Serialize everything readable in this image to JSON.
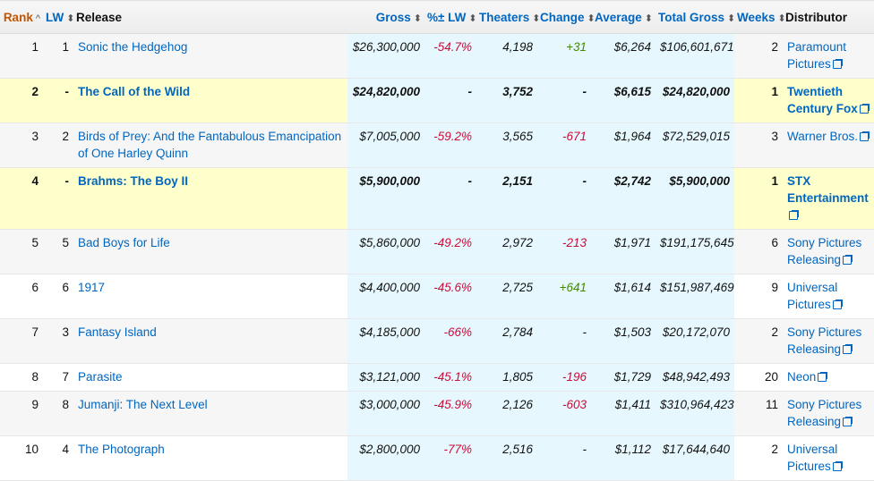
{
  "colors": {
    "link": "#0066c0",
    "sorted_header": "#c45500",
    "negative": "#cc0c39",
    "positive": "#448800",
    "new_release_bg": "#ffffcc",
    "band_bg": "#e6f8fe"
  },
  "headers": [
    {
      "label": "Rank",
      "sort": "caret-up-icon"
    },
    {
      "label": "LW",
      "sort": "sort-icon"
    },
    {
      "label": "Release"
    },
    {
      "label": "Gross",
      "sort": "sort-icon"
    },
    {
      "label": "%± LW",
      "sort": "sort-icon"
    },
    {
      "label": "Theaters",
      "sort": "sort-icon"
    },
    {
      "label": "Change",
      "sort": "sort-icon"
    },
    {
      "label": "Average",
      "sort": "sort-icon"
    },
    {
      "label": "Total Gross",
      "sort": "sort-icon"
    },
    {
      "label": "Weeks",
      "sort": "sort-icon"
    },
    {
      "label": "Distributor"
    }
  ],
  "rows": [
    {
      "rank": "1",
      "lw": "1",
      "release": "Sonic the Hedgehog",
      "gross": "$26,300,000",
      "pct": "-54.7%",
      "theaters": "4,198",
      "change": "+31",
      "average": "$6,264",
      "total": "$106,601,671",
      "weeks": "2",
      "distributor": "Paramount Pictures",
      "new": false
    },
    {
      "rank": "2",
      "lw": "-",
      "release": "The Call of the Wild",
      "gross": "$24,820,000",
      "pct": "-",
      "theaters": "3,752",
      "change": "-",
      "average": "$6,615",
      "total": "$24,820,000",
      "weeks": "1",
      "distributor": "Twentieth Century Fox",
      "new": true
    },
    {
      "rank": "3",
      "lw": "2",
      "release": "Birds of Prey: And the Fantabulous Emancipation of One Harley Quinn",
      "gross": "$7,005,000",
      "pct": "-59.2%",
      "theaters": "3,565",
      "change": "-671",
      "average": "$1,964",
      "total": "$72,529,015",
      "weeks": "3",
      "distributor": "Warner Bros.",
      "new": false
    },
    {
      "rank": "4",
      "lw": "-",
      "release": "Brahms: The Boy II",
      "gross": "$5,900,000",
      "pct": "-",
      "theaters": "2,151",
      "change": "-",
      "average": "$2,742",
      "total": "$5,900,000",
      "weeks": "1",
      "distributor": "STX Entertainment",
      "new": true
    },
    {
      "rank": "5",
      "lw": "5",
      "release": "Bad Boys for Life",
      "gross": "$5,860,000",
      "pct": "-49.2%",
      "theaters": "2,972",
      "change": "-213",
      "average": "$1,971",
      "total": "$191,175,645",
      "weeks": "6",
      "distributor": "Sony Pictures Releasing",
      "new": false
    },
    {
      "rank": "6",
      "lw": "6",
      "release": "1917",
      "gross": "$4,400,000",
      "pct": "-45.6%",
      "theaters": "2,725",
      "change": "+641",
      "average": "$1,614",
      "total": "$151,987,469",
      "weeks": "9",
      "distributor": "Universal Pictures",
      "new": false
    },
    {
      "rank": "7",
      "lw": "3",
      "release": "Fantasy Island",
      "gross": "$4,185,000",
      "pct": "-66%",
      "theaters": "2,784",
      "change": "-",
      "average": "$1,503",
      "total": "$20,172,070",
      "weeks": "2",
      "distributor": "Sony Pictures Releasing",
      "new": false
    },
    {
      "rank": "8",
      "lw": "7",
      "release": "Parasite",
      "gross": "$3,121,000",
      "pct": "-45.1%",
      "theaters": "1,805",
      "change": "-196",
      "average": "$1,729",
      "total": "$48,942,493",
      "weeks": "20",
      "distributor": "Neon",
      "new": false
    },
    {
      "rank": "9",
      "lw": "8",
      "release": "Jumanji: The Next Level",
      "gross": "$3,000,000",
      "pct": "-45.9%",
      "theaters": "2,126",
      "change": "-603",
      "average": "$1,411",
      "total": "$310,964,423",
      "weeks": "11",
      "distributor": "Sony Pictures Releasing",
      "new": false
    },
    {
      "rank": "10",
      "lw": "4",
      "release": "The Photograph",
      "gross": "$2,800,000",
      "pct": "-77%",
      "theaters": "2,516",
      "change": "-",
      "average": "$1,112",
      "total": "$17,644,640",
      "weeks": "2",
      "distributor": "Universal Pictures",
      "new": false
    }
  ]
}
